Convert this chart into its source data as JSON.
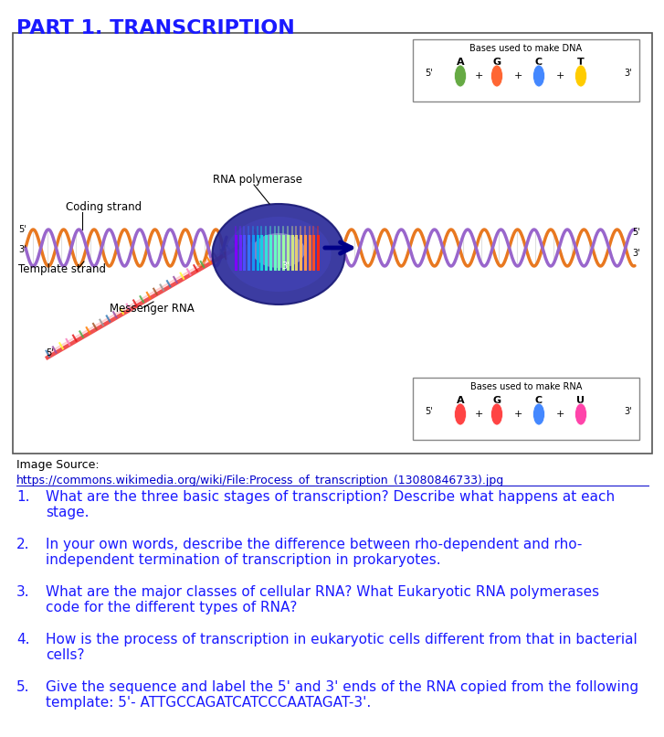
{
  "title": "PART 1. TRANSCRIPTION",
  "title_color": "#1a1aff",
  "title_fontsize": 16,
  "title_bold": true,
  "bg_color": "#ffffff",
  "box_color": "#555555",
  "image_source_label": "Image Source:",
  "image_url": "https://commons.wikimedia.org/wiki/File:Process_of_transcription_(13080846733).jpg",
  "questions": [
    {
      "num": "1.",
      "text": "What are the three basic stages of transcription? Describe what happens at each\nstage."
    },
    {
      "num": "2.",
      "text": "In your own words, describe the difference between rho-dependent and rho-\nindependent termination of transcription in prokaryotes."
    },
    {
      "num": "3.",
      "text": "What are the major classes of cellular RNA? What Eukaryotic RNA polymerases\ncode for the different types of RNA?"
    },
    {
      "num": "4.",
      "text": "How is the process of transcription in eukaryotic cells different from that in bacterial\ncells?"
    },
    {
      "num": "5.",
      "text": "Give the sequence and label the 5' and 3' ends of the RNA copied from the following\ntemplate: 5'- ATTGCCAGATCATCCCAATAGAT-3'."
    }
  ],
  "text_color": "#1a1aff",
  "font_family": "DejaVu Sans",
  "fontsize_body": 10
}
